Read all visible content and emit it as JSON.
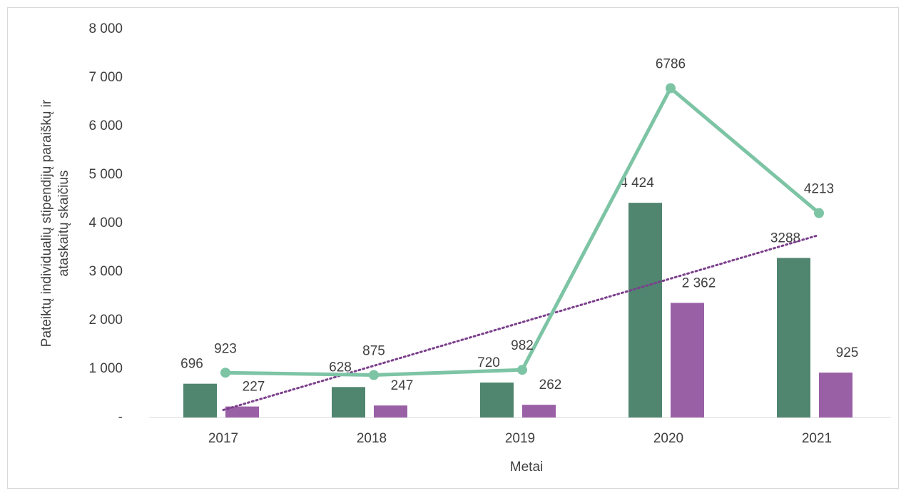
{
  "chart_data": {
    "type": "bar",
    "x_label": "Metai",
    "y_label": "Pateiktų individualių stipendijų paraiškų ir ataskaitų skaičius",
    "categories": [
      "2017",
      "2018",
      "2019",
      "2020",
      "2021"
    ],
    "series": [
      {
        "type": "bar",
        "color": "#508570",
        "values": [
          696,
          628,
          720,
          4424,
          3288
        ],
        "value_labels": [
          "696",
          "628",
          "720",
          "4 424",
          "3288"
        ]
      },
      {
        "type": "bar",
        "color": "#9a60a6",
        "values": [
          227,
          247,
          262,
          2362,
          925
        ],
        "value_labels": [
          "227",
          "247",
          "262",
          "2 362",
          "925"
        ]
      },
      {
        "type": "line",
        "color": "#7dc4a5",
        "values": [
          923,
          875,
          982,
          6786,
          4213
        ]
      }
    ],
    "trendline": {
      "series": 0,
      "kind": "linear",
      "color": "#7b3f8c",
      "style": "dotted"
    },
    "ylim": [
      0,
      8000
    ],
    "yticks": [
      {
        "value": 0,
        "label": "-"
      },
      {
        "value": 1000,
        "label": "1 000"
      },
      {
        "value": 2000,
        "label": "2 000"
      },
      {
        "value": 3000,
        "label": "3 000"
      },
      {
        "value": 4000,
        "label": "4 000"
      },
      {
        "value": 5000,
        "label": "5 000"
      },
      {
        "value": 6000,
        "label": "6 000"
      },
      {
        "value": 7000,
        "label": "7 000"
      },
      {
        "value": 8000,
        "label": "8 000"
      }
    ],
    "grid": false
  }
}
